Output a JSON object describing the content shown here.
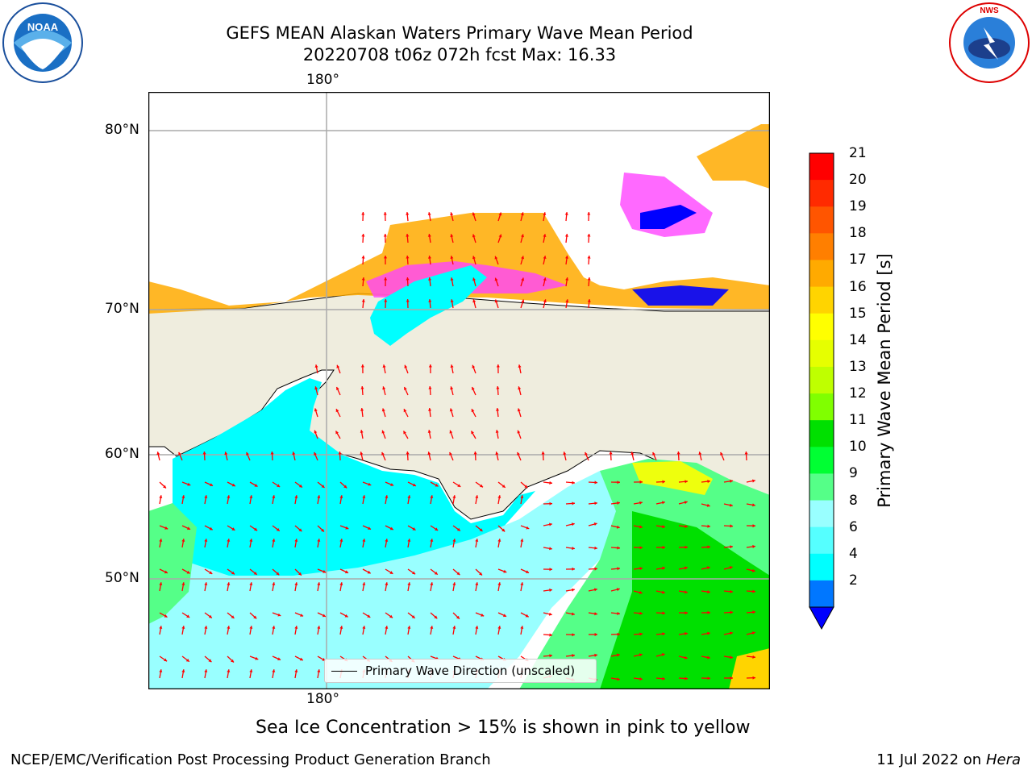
{
  "title_line1": "GEFS MEAN Alaskan Waters Primary Wave Mean Period",
  "title_line2": "20220708 t06z 072h fcst   Max: 16.33",
  "logos": {
    "left": "NOAA",
    "right": "NATIONAL WEATHER SERVICE"
  },
  "map": {
    "lon_label_top": "180°",
    "lon_label_bottom": "180°",
    "lat_labels": [
      "80°N",
      "70°N",
      "60°N",
      "50°N"
    ],
    "legend_text": "Primary Wave Direction (unscaled)"
  },
  "colorbar": {
    "label": "Primary Wave Mean Period [s]",
    "ticks": [
      "21",
      "20",
      "19",
      "18",
      "17",
      "16",
      "15",
      "14",
      "13",
      "12",
      "11",
      "10",
      "9",
      "8",
      "6",
      "4",
      "2"
    ],
    "colors": [
      "#ff0000",
      "#ff2a00",
      "#ff5500",
      "#ff7f00",
      "#ffaa00",
      "#ffd400",
      "#ffff00",
      "#e6ff00",
      "#bfff00",
      "#80ff00",
      "#00e000",
      "#00ff33",
      "#55ff88",
      "#99ffff",
      "#55ffff",
      "#00ffff",
      "#0077ff"
    ],
    "extend_color": "#0000ff"
  },
  "note": "Sea Ice Concentration > 15% is shown in pink to yellow",
  "footer_left": "NCEP/EMC/Verification Post Processing Product Generation Branch",
  "footer_right_date": "11 Jul 2022 on ",
  "footer_right_machine": "Hera"
}
